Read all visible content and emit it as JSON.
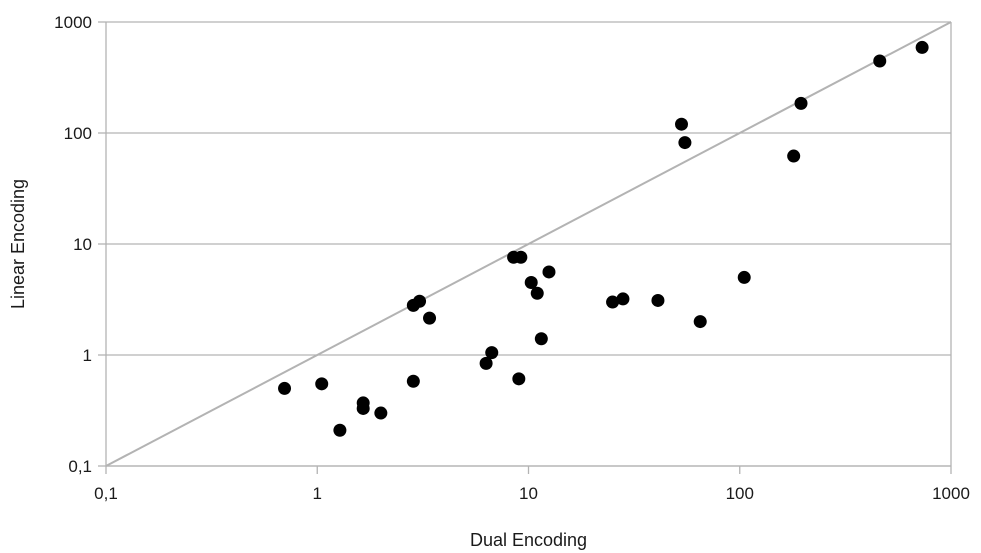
{
  "chart_data": {
    "type": "scatter",
    "title": "",
    "xlabel": "Dual Encoding",
    "ylabel": "Linear Encoding",
    "xscale": "log",
    "yscale": "log",
    "xlim": [
      0.1,
      1000
    ],
    "ylim": [
      0.1,
      1000
    ],
    "x_ticks": [
      0.1,
      1,
      10,
      100,
      1000
    ],
    "x_tick_labels": [
      "0,1",
      "1",
      "10",
      "100",
      "1000"
    ],
    "y_ticks": [
      0.1,
      1,
      10,
      100,
      1000
    ],
    "y_tick_labels": [
      "0,1",
      "1",
      "10",
      "100",
      "1000"
    ],
    "grid": "horizontal",
    "reference_line": "y = x",
    "colors": {
      "points": "#000000",
      "grid": "#b3b3b3",
      "diagonal": "#b3b3b3",
      "text": "#1a1a1a"
    },
    "series": [
      {
        "points": [
          {
            "x": 0.7,
            "y": 0.5
          },
          {
            "x": 1.05,
            "y": 0.55
          },
          {
            "x": 1.28,
            "y": 0.21
          },
          {
            "x": 1.65,
            "y": 0.37
          },
          {
            "x": 1.65,
            "y": 0.33
          },
          {
            "x": 2.0,
            "y": 0.3
          },
          {
            "x": 2.85,
            "y": 0.58
          },
          {
            "x": 2.85,
            "y": 2.8
          },
          {
            "x": 3.05,
            "y": 3.05
          },
          {
            "x": 3.4,
            "y": 2.15
          },
          {
            "x": 6.3,
            "y": 0.84
          },
          {
            "x": 6.7,
            "y": 1.05
          },
          {
            "x": 8.5,
            "y": 7.6
          },
          {
            "x": 9.2,
            "y": 7.6
          },
          {
            "x": 9.0,
            "y": 0.61
          },
          {
            "x": 10.3,
            "y": 4.5
          },
          {
            "x": 11.0,
            "y": 3.6
          },
          {
            "x": 11.5,
            "y": 1.4
          },
          {
            "x": 12.5,
            "y": 5.6
          },
          {
            "x": 25.0,
            "y": 3.0
          },
          {
            "x": 28.0,
            "y": 3.2
          },
          {
            "x": 41.0,
            "y": 3.1
          },
          {
            "x": 53.0,
            "y": 120
          },
          {
            "x": 55.0,
            "y": 82
          },
          {
            "x": 65.0,
            "y": 2.0
          },
          {
            "x": 105.0,
            "y": 5.0
          },
          {
            "x": 180.0,
            "y": 62
          },
          {
            "x": 195.0,
            "y": 185
          },
          {
            "x": 460.0,
            "y": 445
          },
          {
            "x": 730.0,
            "y": 590
          }
        ]
      }
    ]
  }
}
